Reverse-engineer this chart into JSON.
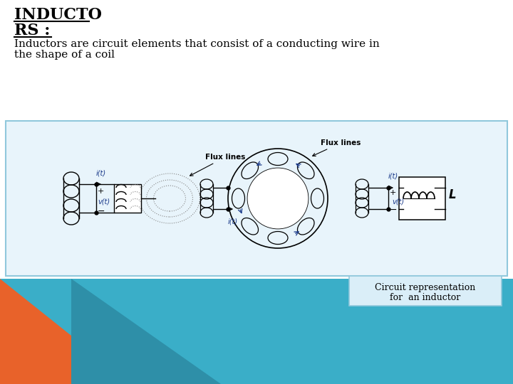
{
  "bg_white": "#ffffff",
  "bg_blue": "#3aaec8",
  "bg_blue_dark": "#2e8fa8",
  "bg_orange": "#e8622a",
  "title_line1": "INDUCTO",
  "title_line2": "RS :",
  "body_text_line1": "Inductors are circuit elements that consist of a conducting wire in",
  "body_text_line2": "the shape of a coil",
  "caption_text1": "Circuit representation",
  "caption_text2": "for  an inductor",
  "caption_box_color": "#daeef8",
  "diagram_box_color": "#e8f4fb",
  "diagram_border_color": "#90c8dc",
  "blue_label": "#1a3a8a",
  "font_size_title": 16,
  "font_size_body": 11,
  "font_size_caption": 9
}
